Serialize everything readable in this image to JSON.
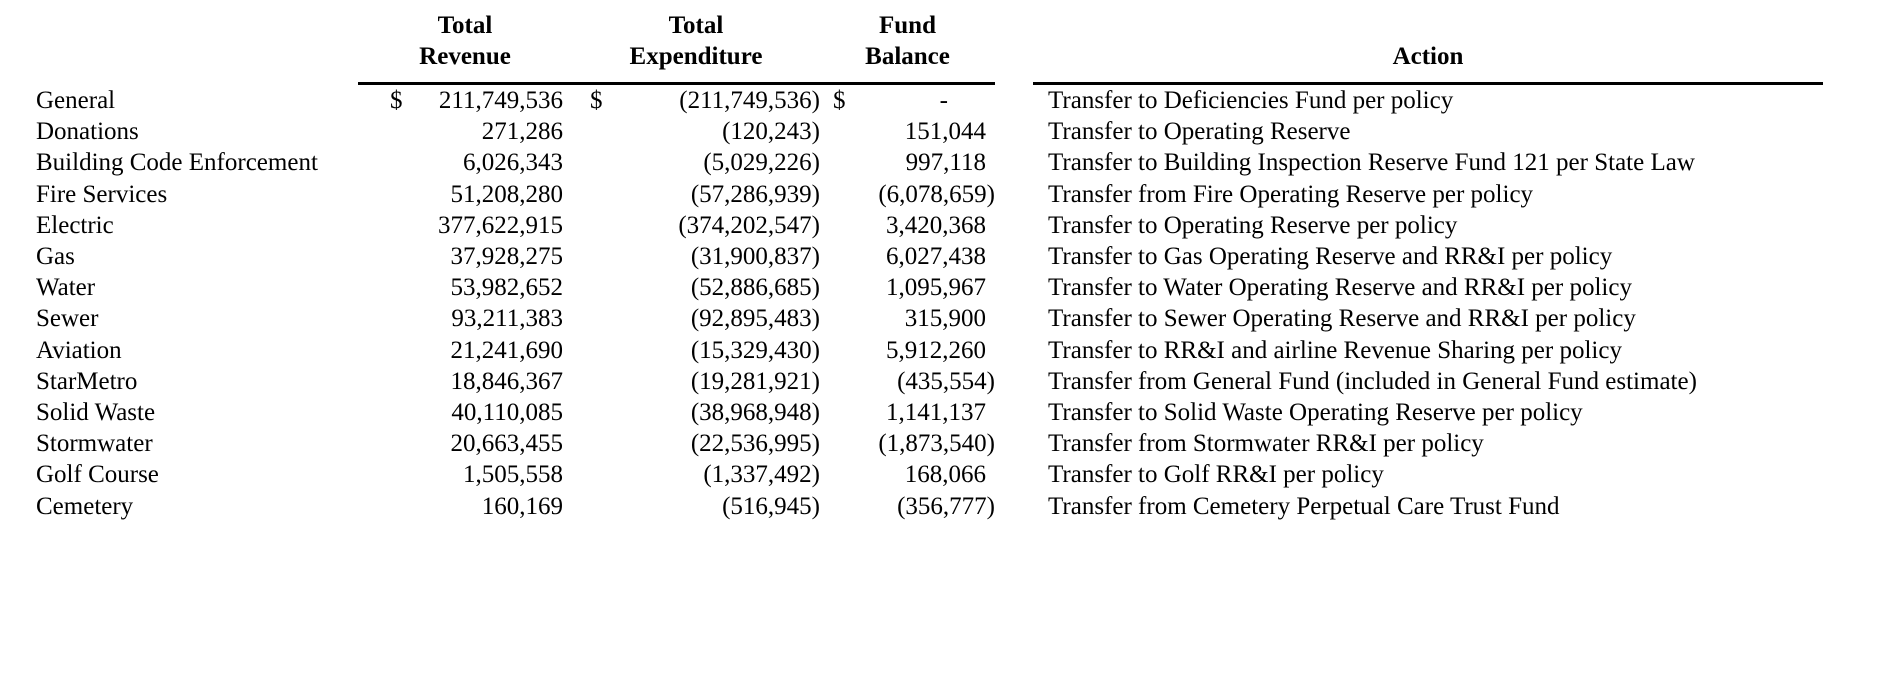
{
  "colors": {
    "background": "#ffffff",
    "text": "#000000",
    "rule": "#000000"
  },
  "table": {
    "header": {
      "revenue_line1": "Total",
      "revenue_line2": "Revenue",
      "expenditure_line1": "Total",
      "expenditure_line2": "Expenditure",
      "balance_line1": "Fund",
      "balance_line2": "Balance",
      "action": "Action"
    },
    "rows": [
      {
        "fund": "General",
        "revenue_dollar": "$",
        "revenue": "211,749,536",
        "expenditure_dollar": "$",
        "expenditure": "(211,749,536)",
        "balance_dollar": "$",
        "balance": "-",
        "action": "Transfer to Deficiencies Fund per policy"
      },
      {
        "fund": "Donations",
        "revenue_dollar": "",
        "revenue": "271,286",
        "expenditure_dollar": "",
        "expenditure": "(120,243)",
        "balance_dollar": "",
        "balance": "151,044",
        "action": "Transfer to Operating Reserve"
      },
      {
        "fund": "Building Code Enforcement",
        "revenue_dollar": "",
        "revenue": "6,026,343",
        "expenditure_dollar": "",
        "expenditure": "(5,029,226)",
        "balance_dollar": "",
        "balance": "997,118",
        "action": "Transfer to Building Inspection Reserve Fund 121 per State Law"
      },
      {
        "fund": "Fire Services",
        "revenue_dollar": "",
        "revenue": "51,208,280",
        "expenditure_dollar": "",
        "expenditure": "(57,286,939)",
        "balance_dollar": "",
        "balance": "(6,078,659)",
        "action": "Transfer from Fire Operating Reserve per policy"
      },
      {
        "fund": "Electric",
        "revenue_dollar": "",
        "revenue": "377,622,915",
        "expenditure_dollar": "",
        "expenditure": "(374,202,547)",
        "balance_dollar": "",
        "balance": "3,420,368",
        "action": "Transfer to Operating Reserve per policy"
      },
      {
        "fund": "Gas",
        "revenue_dollar": "",
        "revenue": "37,928,275",
        "expenditure_dollar": "",
        "expenditure": "(31,900,837)",
        "balance_dollar": "",
        "balance": "6,027,438",
        "action": "Transfer to Gas Operating Reserve and RR&I per policy"
      },
      {
        "fund": "Water",
        "revenue_dollar": "",
        "revenue": "53,982,652",
        "expenditure_dollar": "",
        "expenditure": "(52,886,685)",
        "balance_dollar": "",
        "balance": "1,095,967",
        "action": "Transfer to Water Operating Reserve and RR&I per policy"
      },
      {
        "fund": "Sewer",
        "revenue_dollar": "",
        "revenue": "93,211,383",
        "expenditure_dollar": "",
        "expenditure": "(92,895,483)",
        "balance_dollar": "",
        "balance": "315,900",
        "action": "Transfer to Sewer Operating Reserve and RR&I per policy"
      },
      {
        "fund": "Aviation",
        "revenue_dollar": "",
        "revenue": "21,241,690",
        "expenditure_dollar": "",
        "expenditure": "(15,329,430)",
        "balance_dollar": "",
        "balance": "5,912,260",
        "action": "Transfer to RR&I and airline Revenue Sharing per policy"
      },
      {
        "fund": "StarMetro",
        "revenue_dollar": "",
        "revenue": "18,846,367",
        "expenditure_dollar": "",
        "expenditure": "(19,281,921)",
        "balance_dollar": "",
        "balance": "(435,554)",
        "action": "Transfer from General Fund (included in General Fund estimate)"
      },
      {
        "fund": "Solid Waste",
        "revenue_dollar": "",
        "revenue": "40,110,085",
        "expenditure_dollar": "",
        "expenditure": "(38,968,948)",
        "balance_dollar": "",
        "balance": "1,141,137",
        "action": "Transfer to Solid Waste Operating Reserve per policy"
      },
      {
        "fund": "Stormwater",
        "revenue_dollar": "",
        "revenue": "20,663,455",
        "expenditure_dollar": "",
        "expenditure": "(22,536,995)",
        "balance_dollar": "",
        "balance": "(1,873,540)",
        "action": "Transfer from Stormwater RR&I per policy"
      },
      {
        "fund": "Golf Course",
        "revenue_dollar": "",
        "revenue": "1,505,558",
        "expenditure_dollar": "",
        "expenditure": "(1,337,492)",
        "balance_dollar": "",
        "balance": "168,066",
        "action": "Transfer to Golf RR&I per policy"
      },
      {
        "fund": "Cemetery",
        "revenue_dollar": "",
        "revenue": "160,169",
        "expenditure_dollar": "",
        "expenditure": "(516,945)",
        "balance_dollar": "",
        "balance": "(356,777)",
        "action": "Transfer from Cemetery Perpetual Care Trust Fund"
      }
    ]
  }
}
